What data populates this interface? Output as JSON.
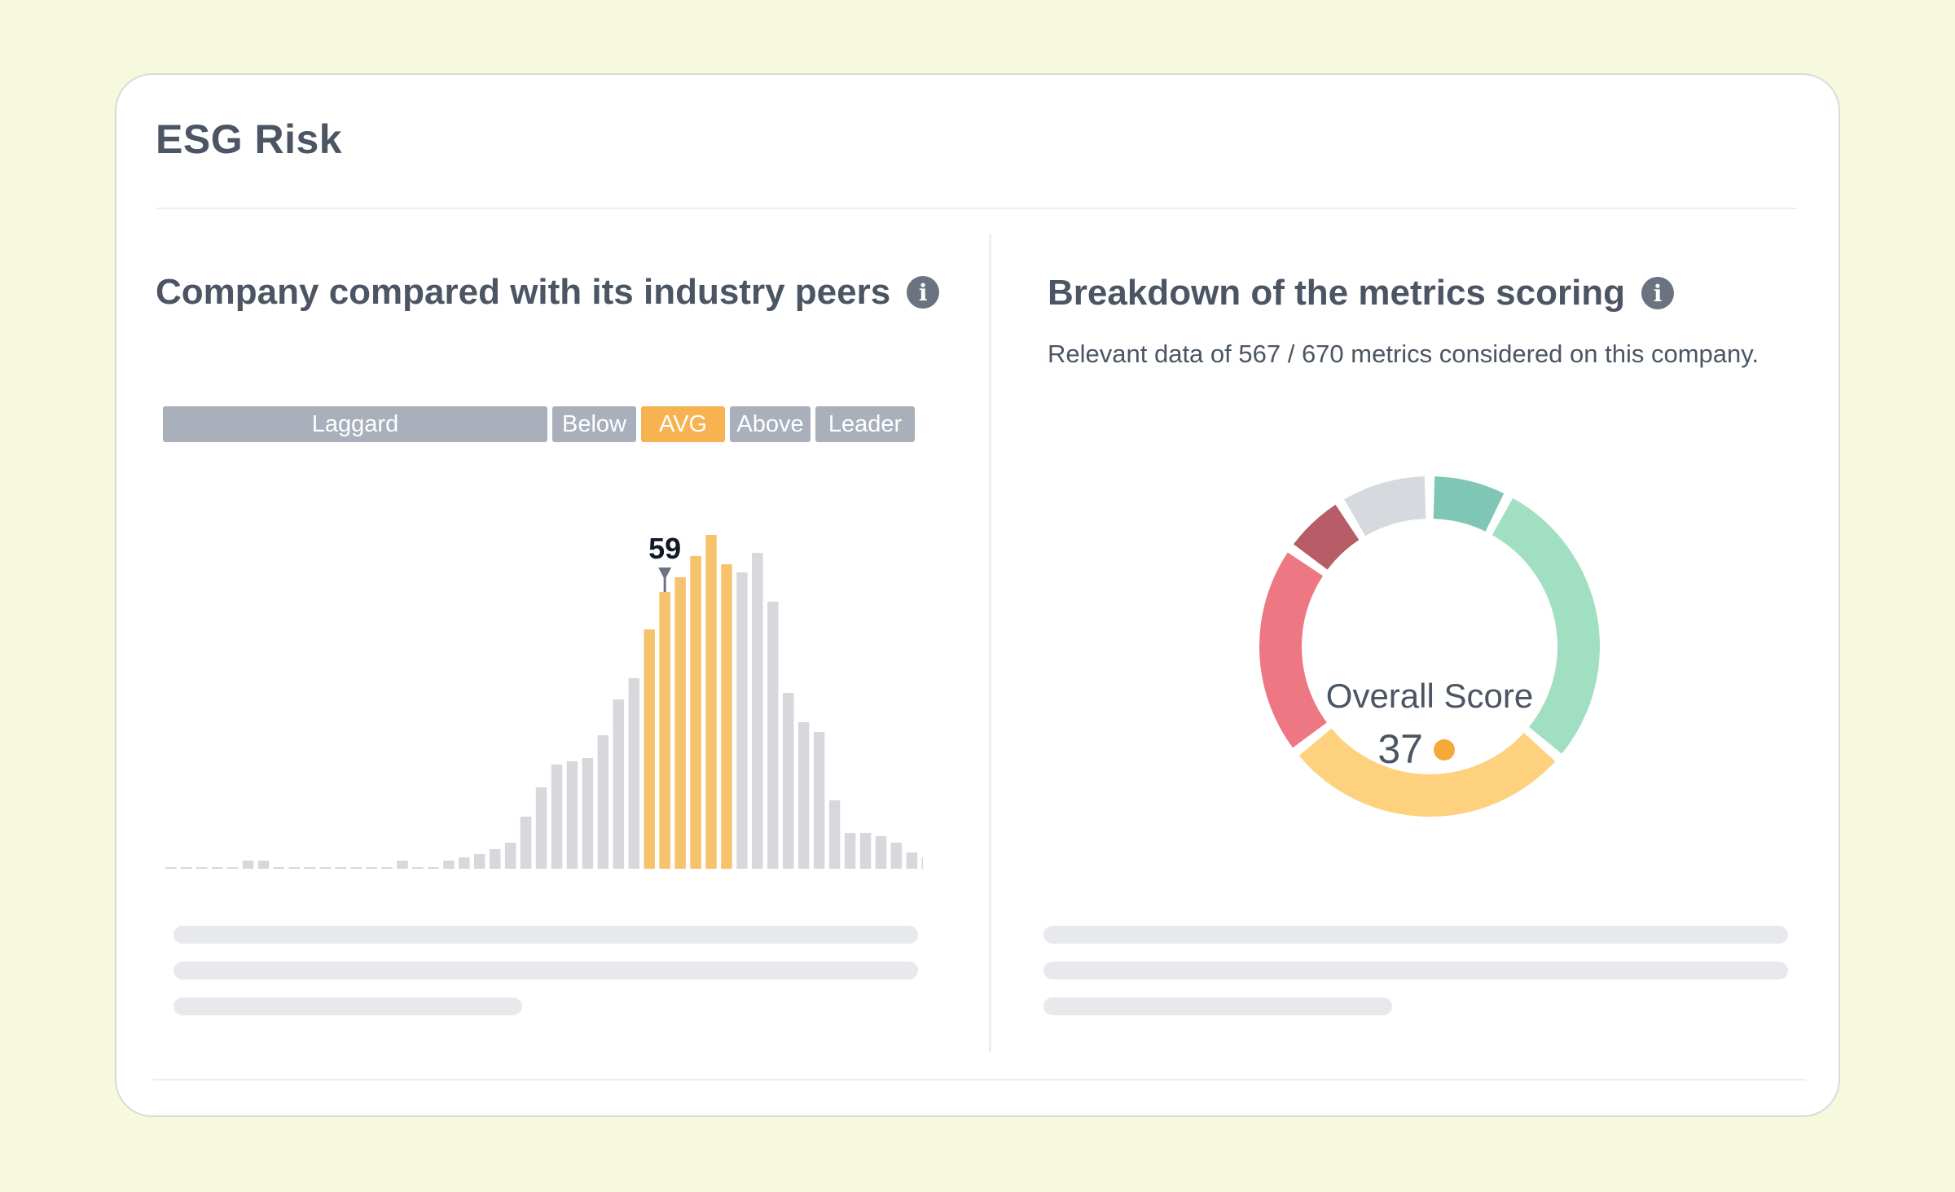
{
  "card": {
    "title": "ESG Risk"
  },
  "peers": {
    "title": "Company compared with its industry peers",
    "info_icon": "info-icon",
    "bands": [
      {
        "label": "Laggard",
        "color": "#a9b0bb"
      },
      {
        "label": "Below",
        "color": "#a9b0bb"
      },
      {
        "label": "AVG",
        "color": "#f7b251"
      },
      {
        "label": "Above",
        "color": "#a9b0bb"
      },
      {
        "label": "Leader",
        "color": "#a9b0bb"
      }
    ],
    "marker_label": "59"
  },
  "breakdown": {
    "title": "Breakdown of the metrics scoring",
    "info_icon": "info-icon",
    "subtitle": "Relevant data of 567 / 670 metrics considered on this company.",
    "center_label": "Overall Score",
    "score": "37",
    "score_dot_color": "#f4a93a"
  },
  "chart_data": [
    {
      "type": "bar",
      "title": "",
      "xlabel": "",
      "ylabel": "",
      "grid": false,
      "values": [
        1,
        1,
        1,
        1,
        1,
        5,
        5,
        1,
        1,
        1,
        1,
        1,
        1,
        1,
        1,
        5,
        1,
        1,
        5,
        7,
        9,
        12,
        16,
        32,
        50,
        64,
        66,
        68,
        82,
        104,
        117,
        147,
        170,
        179,
        192,
        205,
        187,
        182,
        194,
        164,
        108,
        90,
        84,
        42,
        22,
        22,
        20,
        16,
        10,
        7,
        5
      ],
      "highlight_range": [
        31,
        36
      ],
      "highlight_color": "#f7c26e",
      "base_color": "#d6d8dc",
      "marker": {
        "value": 59,
        "bar_index": 32
      }
    },
    {
      "type": "pie",
      "title": "",
      "variant": "donut",
      "slices": [
        {
          "value": 5.7,
          "color": "#7fc6b4"
        },
        {
          "value": 23.5,
          "color": "#a0dfc1"
        },
        {
          "value": 23.0,
          "color": "#fdd17e"
        },
        {
          "value": 16.5,
          "color": "#ee7784"
        },
        {
          "value": 4.6,
          "color": "#b85d68"
        },
        {
          "value": 6.7,
          "color": "#d6d9de"
        }
      ]
    }
  ]
}
